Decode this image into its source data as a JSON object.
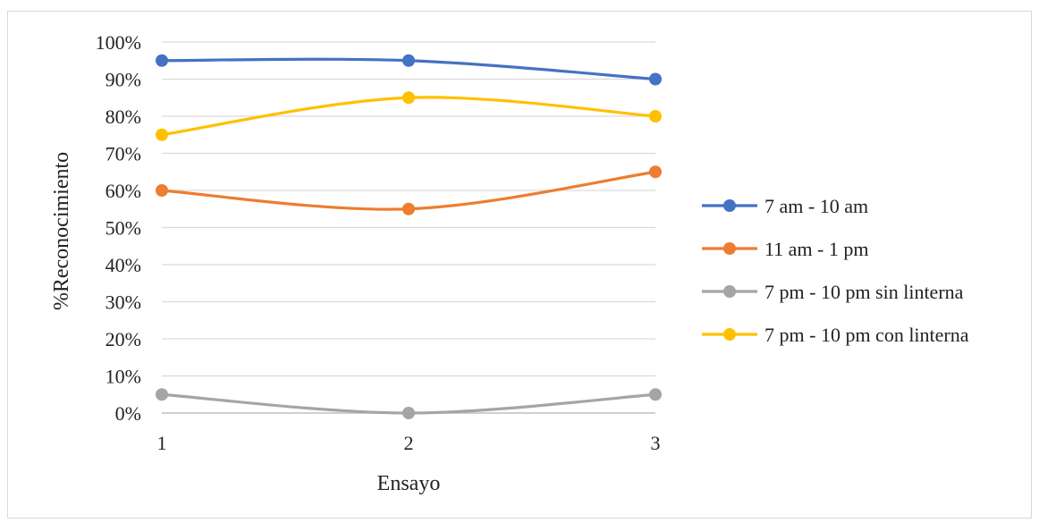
{
  "chart_data": {
    "type": "line",
    "smooth": true,
    "title": "",
    "xlabel": "Ensayo",
    "ylabel": "%Reconocimiento",
    "categories": [
      "1",
      "2",
      "3"
    ],
    "ylim": [
      0,
      100
    ],
    "yticks": [
      "0%",
      "10%",
      "20%",
      "30%",
      "40%",
      "50%",
      "60%",
      "70%",
      "80%",
      "90%",
      "100%"
    ],
    "grid": true,
    "legend_position": "right",
    "series": [
      {
        "name": "7 am - 10 am",
        "color": "#4472C4",
        "values": [
          95,
          95,
          90
        ]
      },
      {
        "name": "11 am - 1 pm",
        "color": "#ED7D31",
        "values": [
          60,
          55,
          65
        ]
      },
      {
        "name": "7 pm - 10 pm sin linterna",
        "color": "#A5A5A5",
        "values": [
          5,
          0,
          5
        ]
      },
      {
        "name": "7 pm - 10 pm con linterna",
        "color": "#FFC000",
        "values": [
          75,
          85,
          80
        ]
      }
    ]
  }
}
